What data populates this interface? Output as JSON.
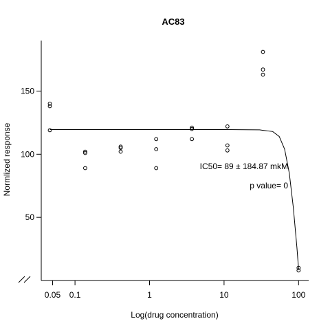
{
  "chart_data": {
    "type": "scatter",
    "title": "AC83",
    "xlabel": "Log(drug concentration)",
    "ylabel": "Normlized response",
    "x_scale": "log",
    "xlim": [
      0.04,
      130
    ],
    "ylim": [
      0,
      190
    ],
    "x_ticks": [
      {
        "value": 0.05,
        "label": "0.05"
      },
      {
        "value": 0.1,
        "label": "0.1"
      },
      {
        "value": 1,
        "label": "1"
      },
      {
        "value": 10,
        "label": "10"
      },
      {
        "value": 100,
        "label": "100"
      }
    ],
    "y_ticks": [
      {
        "value": 50,
        "label": "50"
      },
      {
        "value": 100,
        "label": "100"
      },
      {
        "value": 150,
        "label": "150"
      }
    ],
    "axis_break": true,
    "grid": false,
    "points": [
      {
        "x": 0.046,
        "y": 140
      },
      {
        "x": 0.046,
        "y": 138
      },
      {
        "x": 0.046,
        "y": 119
      },
      {
        "x": 0.137,
        "y": 102
      },
      {
        "x": 0.137,
        "y": 101
      },
      {
        "x": 0.137,
        "y": 89
      },
      {
        "x": 0.41,
        "y": 106
      },
      {
        "x": 0.41,
        "y": 105
      },
      {
        "x": 0.41,
        "y": 102
      },
      {
        "x": 1.23,
        "y": 112
      },
      {
        "x": 1.23,
        "y": 104
      },
      {
        "x": 1.23,
        "y": 89
      },
      {
        "x": 3.7,
        "y": 121
      },
      {
        "x": 3.7,
        "y": 120
      },
      {
        "x": 3.7,
        "y": 112
      },
      {
        "x": 11.1,
        "y": 122
      },
      {
        "x": 11.1,
        "y": 107
      },
      {
        "x": 11.1,
        "y": 103
      },
      {
        "x": 33.3,
        "y": 181
      },
      {
        "x": 33.3,
        "y": 167
      },
      {
        "x": 33.3,
        "y": 163
      },
      {
        "x": 100,
        "y": 10
      },
      {
        "x": 100,
        "y": 8
      }
    ],
    "fit_curve": {
      "x": [
        0.046,
        0.1,
        1,
        10,
        30,
        45,
        55,
        65,
        75,
        85,
        95,
        100
      ],
      "y": [
        119.5,
        119.5,
        119.5,
        119.5,
        119.3,
        118,
        114,
        104,
        85,
        58,
        26,
        9
      ]
    },
    "annotations": [
      {
        "text": "IC50= 89 ± 184.87 mkM"
      },
      {
        "text": "p value= 0"
      }
    ]
  }
}
